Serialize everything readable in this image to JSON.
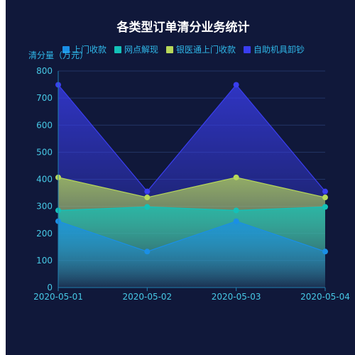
{
  "chart_data": {
    "type": "area",
    "title": "各类型订单清分业务统计",
    "ylabel": "清分量（万元）",
    "xlabel": "",
    "categories": [
      "2020-05-01",
      "2020-05-02",
      "2020-05-03",
      "2020-05-04"
    ],
    "ylim": [
      0,
      800
    ],
    "yticks": [
      0,
      100,
      200,
      300,
      400,
      500,
      600,
      700,
      800
    ],
    "grid": true,
    "legend_position": "top",
    "series": [
      {
        "name": "上门收款",
        "values": [
          245,
          133,
          245,
          133
        ],
        "color": "#1a8fe6"
      },
      {
        "name": "网点解现",
        "values": [
          285,
          298,
          285,
          298
        ],
        "color": "#13c2b8"
      },
      {
        "name": "银医通上门收款",
        "values": [
          407,
          333,
          407,
          333
        ],
        "color": "#b8d85a"
      },
      {
        "name": "自助机具卸钞",
        "values": [
          749,
          355,
          749,
          355
        ],
        "color": "#3a3ef0"
      }
    ]
  }
}
